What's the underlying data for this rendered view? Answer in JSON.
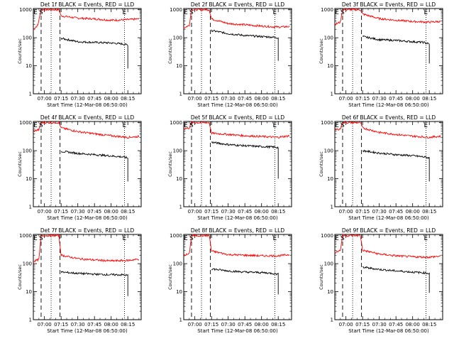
{
  "colors": {
    "background": "#ffffff",
    "events": "#000000",
    "lld": "#ff0000",
    "axes": "#000000"
  },
  "common": {
    "ylabel": "Counts/sec",
    "xlabel": "Start Time (12-Mar-08 06:50:00)"
  },
  "chart_data": [
    {
      "type": "line",
      "title": "Det 1f BLACK = Events, RED = LLD",
      "xlabel": "Start Time (12-Mar-08 06:50:00)",
      "ylabel": "Counts/sec",
      "x_ticks": [
        "07:00",
        "07:15",
        "07:30",
        "07:45",
        "08:00",
        "08:15"
      ],
      "y_ticks": [
        "1",
        "10",
        "100",
        "1000"
      ],
      "xlim": [
        "06:50",
        "08:27"
      ],
      "ylim": [
        1,
        1100
      ],
      "y_scale": "log",
      "markers": [
        {
          "label": "E",
          "time": "06:52"
        },
        {
          "label": "S",
          "time": "06:57"
        },
        {
          "label": "E",
          "time": "08:12"
        }
      ],
      "dashed_lines": [
        "06:57",
        "07:14"
      ],
      "dotted_lines": [
        "07:06",
        "08:12"
      ],
      "series": [
        {
          "color": "red",
          "x": [
            "06:50",
            "06:54",
            "06:56",
            "06:57",
            "07:13",
            "07:15",
            "07:30",
            "07:45",
            "08:00",
            "08:15",
            "08:25"
          ],
          "values": [
            200,
            280,
            650,
            1000,
            1000,
            600,
            500,
            470,
            420,
            440,
            470
          ]
        },
        {
          "color": "black",
          "x": [
            "07:15",
            "07:30",
            "07:45",
            "08:00",
            "08:10",
            "08:15",
            "08:15"
          ],
          "values": [
            95,
            72,
            68,
            65,
            60,
            55,
            8
          ]
        }
      ]
    },
    {
      "type": "line",
      "title": "Det 2f BLACK = Events, RED = LLD",
      "xlabel": "Start Time (12-Mar-08 06:50:00)",
      "ylabel": "Counts/sec",
      "x_ticks": [
        "07:00",
        "07:15",
        "07:30",
        "07:45",
        "08:00",
        "08:15"
      ],
      "y_ticks": [
        "1",
        "10",
        "100",
        "1000"
      ],
      "xlim": [
        "06:50",
        "08:27"
      ],
      "ylim": [
        1,
        1100
      ],
      "y_scale": "log",
      "markers": [
        {
          "label": "E",
          "time": "06:52"
        },
        {
          "label": "S",
          "time": "06:57"
        },
        {
          "label": "E",
          "time": "08:12"
        }
      ],
      "dashed_lines": [
        "06:57",
        "07:14"
      ],
      "dotted_lines": [
        "07:06",
        "08:12"
      ],
      "series": [
        {
          "color": "red",
          "x": [
            "06:50",
            "06:55",
            "06:57",
            "07:13",
            "07:15",
            "07:30",
            "07:45",
            "08:00",
            "08:15",
            "08:25"
          ],
          "values": [
            220,
            280,
            1000,
            1000,
            470,
            320,
            290,
            260,
            240,
            250
          ]
        },
        {
          "color": "black",
          "x": [
            "07:15",
            "07:30",
            "07:45",
            "08:00",
            "08:10",
            "08:15",
            "08:15"
          ],
          "values": [
            180,
            140,
            120,
            110,
            105,
            100,
            15
          ]
        }
      ]
    },
    {
      "type": "line",
      "title": "Det 3f BLACK = Events, RED = LLD",
      "xlabel": "Start Time (12-Mar-08 06:50:00)",
      "ylabel": "Counts/sec",
      "x_ticks": [
        "07:00",
        "07:15",
        "07:30",
        "07:45",
        "08:00",
        "08:15"
      ],
      "y_ticks": [
        "1",
        "10",
        "100",
        "1000"
      ],
      "xlim": [
        "06:50",
        "08:27"
      ],
      "ylim": [
        1,
        1100
      ],
      "y_scale": "log",
      "markers": [
        {
          "label": "E",
          "time": "06:52"
        },
        {
          "label": "S",
          "time": "06:57"
        },
        {
          "label": "E",
          "time": "08:12"
        }
      ],
      "dashed_lines": [
        "06:57",
        "07:14"
      ],
      "dotted_lines": [
        "07:06",
        "08:12"
      ],
      "series": [
        {
          "color": "red",
          "x": [
            "06:50",
            "06:55",
            "06:57",
            "07:13",
            "07:15",
            "07:30",
            "07:45",
            "08:00",
            "08:15",
            "08:25"
          ],
          "values": [
            300,
            360,
            1000,
            1000,
            700,
            480,
            420,
            380,
            360,
            380
          ]
        },
        {
          "color": "black",
          "x": [
            "07:15",
            "07:30",
            "07:45",
            "08:00",
            "08:10",
            "08:15",
            "08:15"
          ],
          "values": [
            110,
            85,
            80,
            72,
            68,
            60,
            12
          ]
        }
      ]
    },
    {
      "type": "line",
      "title": "Det 4f BLACK = Events, RED = LLD",
      "xlabel": "Start Time (12-Mar-08 06:50:00)",
      "ylabel": "Counts/sec",
      "x_ticks": [
        "07:00",
        "07:15",
        "07:30",
        "07:45",
        "08:00",
        "08:15"
      ],
      "y_ticks": [
        "1",
        "10",
        "100",
        "1000"
      ],
      "xlim": [
        "06:50",
        "08:27"
      ],
      "ylim": [
        1,
        1100
      ],
      "y_scale": "log",
      "markers": [
        {
          "label": "E",
          "time": "06:52"
        },
        {
          "label": "S",
          "time": "06:57"
        },
        {
          "label": "E",
          "time": "08:12"
        }
      ],
      "dashed_lines": [
        "06:57",
        "07:14"
      ],
      "dotted_lines": [
        "07:06",
        "08:12"
      ],
      "series": [
        {
          "color": "red",
          "x": [
            "06:50",
            "06:55",
            "06:57",
            "07:13",
            "07:15",
            "07:30",
            "07:45",
            "08:00",
            "08:15",
            "08:25"
          ],
          "values": [
            500,
            560,
            1000,
            1000,
            650,
            480,
            400,
            340,
            300,
            320
          ]
        },
        {
          "color": "black",
          "x": [
            "07:15",
            "07:30",
            "07:45",
            "08:00",
            "08:10",
            "08:15",
            "08:15"
          ],
          "values": [
            95,
            80,
            72,
            65,
            60,
            55,
            8
          ]
        }
      ]
    },
    {
      "type": "line",
      "title": "Det 5f BLACK = Events, RED = LLD",
      "xlabel": "Start Time (12-Mar-08 06:50:00)",
      "ylabel": "Counts/sec",
      "x_ticks": [
        "07:00",
        "07:15",
        "07:30",
        "07:45",
        "08:00",
        "08:15"
      ],
      "y_ticks": [
        "1",
        "10",
        "100",
        "1000"
      ],
      "xlim": [
        "06:50",
        "08:27"
      ],
      "ylim": [
        1,
        1100
      ],
      "y_scale": "log",
      "markers": [
        {
          "label": "E",
          "time": "06:52"
        },
        {
          "label": "S",
          "time": "06:57"
        },
        {
          "label": "E",
          "time": "08:12"
        }
      ],
      "dashed_lines": [
        "06:57",
        "07:14"
      ],
      "dotted_lines": [
        "07:06",
        "08:12"
      ],
      "series": [
        {
          "color": "red",
          "x": [
            "06:50",
            "06:55",
            "06:57",
            "07:13",
            "07:15",
            "07:30",
            "07:45",
            "08:00",
            "08:15",
            "08:25"
          ],
          "values": [
            600,
            650,
            1000,
            1000,
            420,
            380,
            340,
            320,
            300,
            340
          ]
        },
        {
          "color": "black",
          "x": [
            "07:15",
            "07:30",
            "07:45",
            "08:00",
            "08:10",
            "08:15",
            "08:15"
          ],
          "values": [
            200,
            165,
            150,
            140,
            135,
            130,
            10
          ]
        }
      ]
    },
    {
      "type": "line",
      "title": "Det 6f BLACK = Events, RED = LLD",
      "xlabel": "Start Time (12-Mar-08 06:50:00)",
      "ylabel": "Counts/sec",
      "x_ticks": [
        "07:00",
        "07:15",
        "07:30",
        "07:45",
        "08:00",
        "08:15"
      ],
      "y_ticks": [
        "1",
        "10",
        "100",
        "1000"
      ],
      "xlim": [
        "06:50",
        "08:27"
      ],
      "ylim": [
        1,
        1100
      ],
      "y_scale": "log",
      "markers": [
        {
          "label": "E",
          "time": "06:52"
        },
        {
          "label": "S",
          "time": "06:57"
        },
        {
          "label": "E",
          "time": "08:12"
        }
      ],
      "dashed_lines": [
        "06:57",
        "07:14"
      ],
      "dotted_lines": [
        "07:06",
        "08:12"
      ],
      "series": [
        {
          "color": "red",
          "x": [
            "06:50",
            "06:55",
            "06:57",
            "07:13",
            "07:15",
            "07:30",
            "07:45",
            "08:00",
            "08:15",
            "08:25"
          ],
          "values": [
            550,
            600,
            1000,
            1000,
            650,
            450,
            380,
            330,
            300,
            330
          ]
        },
        {
          "color": "black",
          "x": [
            "07:15",
            "07:30",
            "07:45",
            "08:00",
            "08:10",
            "08:15",
            "08:15"
          ],
          "values": [
            100,
            82,
            72,
            66,
            60,
            55,
            8
          ]
        }
      ]
    },
    {
      "type": "line",
      "title": "Det 7f BLACK = Events, RED = LLD",
      "xlabel": "Start Time (12-Mar-08 06:50:00)",
      "ylabel": "Counts/sec",
      "x_ticks": [
        "07:00",
        "07:15",
        "07:30",
        "07:45",
        "08:00",
        "08:15"
      ],
      "y_ticks": [
        "1",
        "10",
        "100",
        "1000"
      ],
      "xlim": [
        "06:50",
        "08:27"
      ],
      "ylim": [
        1,
        1100
      ],
      "y_scale": "log",
      "markers": [
        {
          "label": "E",
          "time": "06:52"
        },
        {
          "label": "S",
          "time": "06:57"
        },
        {
          "label": "E",
          "time": "08:12"
        }
      ],
      "dashed_lines": [
        "06:57",
        "07:14"
      ],
      "dotted_lines": [
        "07:06",
        "08:12"
      ],
      "series": [
        {
          "color": "red",
          "x": [
            "06:50",
            "06:55",
            "06:57",
            "07:13",
            "07:15",
            "07:30",
            "07:45",
            "08:00",
            "08:15",
            "08:25"
          ],
          "values": [
            120,
            140,
            1000,
            1000,
            200,
            150,
            135,
            125,
            130,
            145
          ]
        },
        {
          "color": "black",
          "x": [
            "07:15",
            "07:30",
            "07:45",
            "08:00",
            "08:10",
            "08:15",
            "08:15"
          ],
          "values": [
            50,
            45,
            42,
            40,
            40,
            38,
            7
          ]
        }
      ]
    },
    {
      "type": "line",
      "title": "Det 8f BLACK = Events, RED = LLD",
      "xlabel": "Start Time (12-Mar-08 06:50:00)",
      "ylabel": "Counts/sec",
      "x_ticks": [
        "07:00",
        "07:15",
        "07:30",
        "07:45",
        "08:00",
        "08:15"
      ],
      "y_ticks": [
        "1",
        "10",
        "100",
        "1000"
      ],
      "xlim": [
        "06:50",
        "08:27"
      ],
      "ylim": [
        1,
        1100
      ],
      "y_scale": "log",
      "markers": [
        {
          "label": "E",
          "time": "06:52"
        },
        {
          "label": "S",
          "time": "06:57"
        },
        {
          "label": "E",
          "time": "08:12"
        }
      ],
      "dashed_lines": [
        "06:57",
        "07:14"
      ],
      "dotted_lines": [
        "07:06",
        "08:12"
      ],
      "series": [
        {
          "color": "red",
          "x": [
            "06:50",
            "06:55",
            "06:57",
            "07:13",
            "07:15",
            "07:30",
            "07:45",
            "08:00",
            "08:15",
            "08:25"
          ],
          "values": [
            200,
            220,
            1000,
            1000,
            280,
            210,
            200,
            190,
            190,
            210
          ]
        },
        {
          "color": "black",
          "x": [
            "07:15",
            "07:30",
            "07:45",
            "08:00",
            "08:10",
            "08:15",
            "08:15"
          ],
          "values": [
            65,
            55,
            50,
            48,
            45,
            42,
            8
          ]
        }
      ]
    },
    {
      "type": "line",
      "title": "Det 9f BLACK = Events, RED = LLD",
      "xlabel": "Start Time (12-Mar-08 06:50:00)",
      "ylabel": "Counts/sec",
      "x_ticks": [
        "07:00",
        "07:15",
        "07:30",
        "07:45",
        "08:00",
        "08:15"
      ],
      "y_ticks": [
        "1",
        "10",
        "100",
        "1000"
      ],
      "xlim": [
        "06:50",
        "08:27"
      ],
      "ylim": [
        1,
        1100
      ],
      "y_scale": "log",
      "markers": [
        {
          "label": "E",
          "time": "06:52"
        },
        {
          "label": "S",
          "time": "06:57"
        },
        {
          "label": "E",
          "time": "08:12"
        }
      ],
      "dashed_lines": [
        "06:57",
        "07:14"
      ],
      "dotted_lines": [
        "07:06",
        "08:12"
      ],
      "series": [
        {
          "color": "red",
          "x": [
            "06:50",
            "06:55",
            "06:57",
            "07:13",
            "07:15",
            "07:30",
            "07:45",
            "08:00",
            "08:15",
            "08:25"
          ],
          "values": [
            250,
            300,
            1000,
            1000,
            300,
            220,
            190,
            175,
            170,
            185
          ]
        },
        {
          "color": "black",
          "x": [
            "07:15",
            "07:30",
            "07:45",
            "08:00",
            "08:10",
            "08:15",
            "08:15"
          ],
          "values": [
            75,
            62,
            55,
            50,
            47,
            45,
            9
          ]
        }
      ]
    }
  ]
}
